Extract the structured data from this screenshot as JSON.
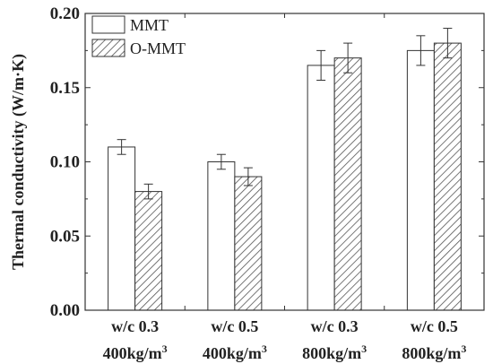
{
  "chart_data": {
    "type": "bar",
    "title": "",
    "xlabel": "",
    "ylabel": "Thermal conductivity (W/m·K)",
    "ylim": [
      0.0,
      0.2
    ],
    "yticks": [
      "0.00",
      "0.05",
      "0.10",
      "0.15",
      "0.20"
    ],
    "categories": [
      {
        "line1": "w/c 0.3",
        "line2_base": "400kg/m",
        "line2_sup": "3"
      },
      {
        "line1": "w/c 0.5",
        "line2_base": "400kg/m",
        "line2_sup": "3"
      },
      {
        "line1": "w/c 0.3",
        "line2_base": "800kg/m",
        "line2_sup": "3"
      },
      {
        "line1": "w/c 0.5",
        "line2_base": "800kg/m",
        "line2_sup": "3"
      }
    ],
    "series": [
      {
        "name": "MMT",
        "pattern": "open",
        "values": [
          0.11,
          0.1,
          0.165,
          0.175
        ],
        "errors": [
          0.005,
          0.005,
          0.01,
          0.01
        ]
      },
      {
        "name": "O-MMT",
        "pattern": "hatched",
        "values": [
          0.08,
          0.09,
          0.17,
          0.18
        ],
        "errors": [
          0.005,
          0.006,
          0.01,
          0.01
        ]
      }
    ],
    "legend_position": "top-left",
    "grid": false,
    "colors": {
      "axis": "#333333",
      "bar_fill": "#ffffff",
      "hatch": "#555555",
      "error": "#333333"
    }
  }
}
